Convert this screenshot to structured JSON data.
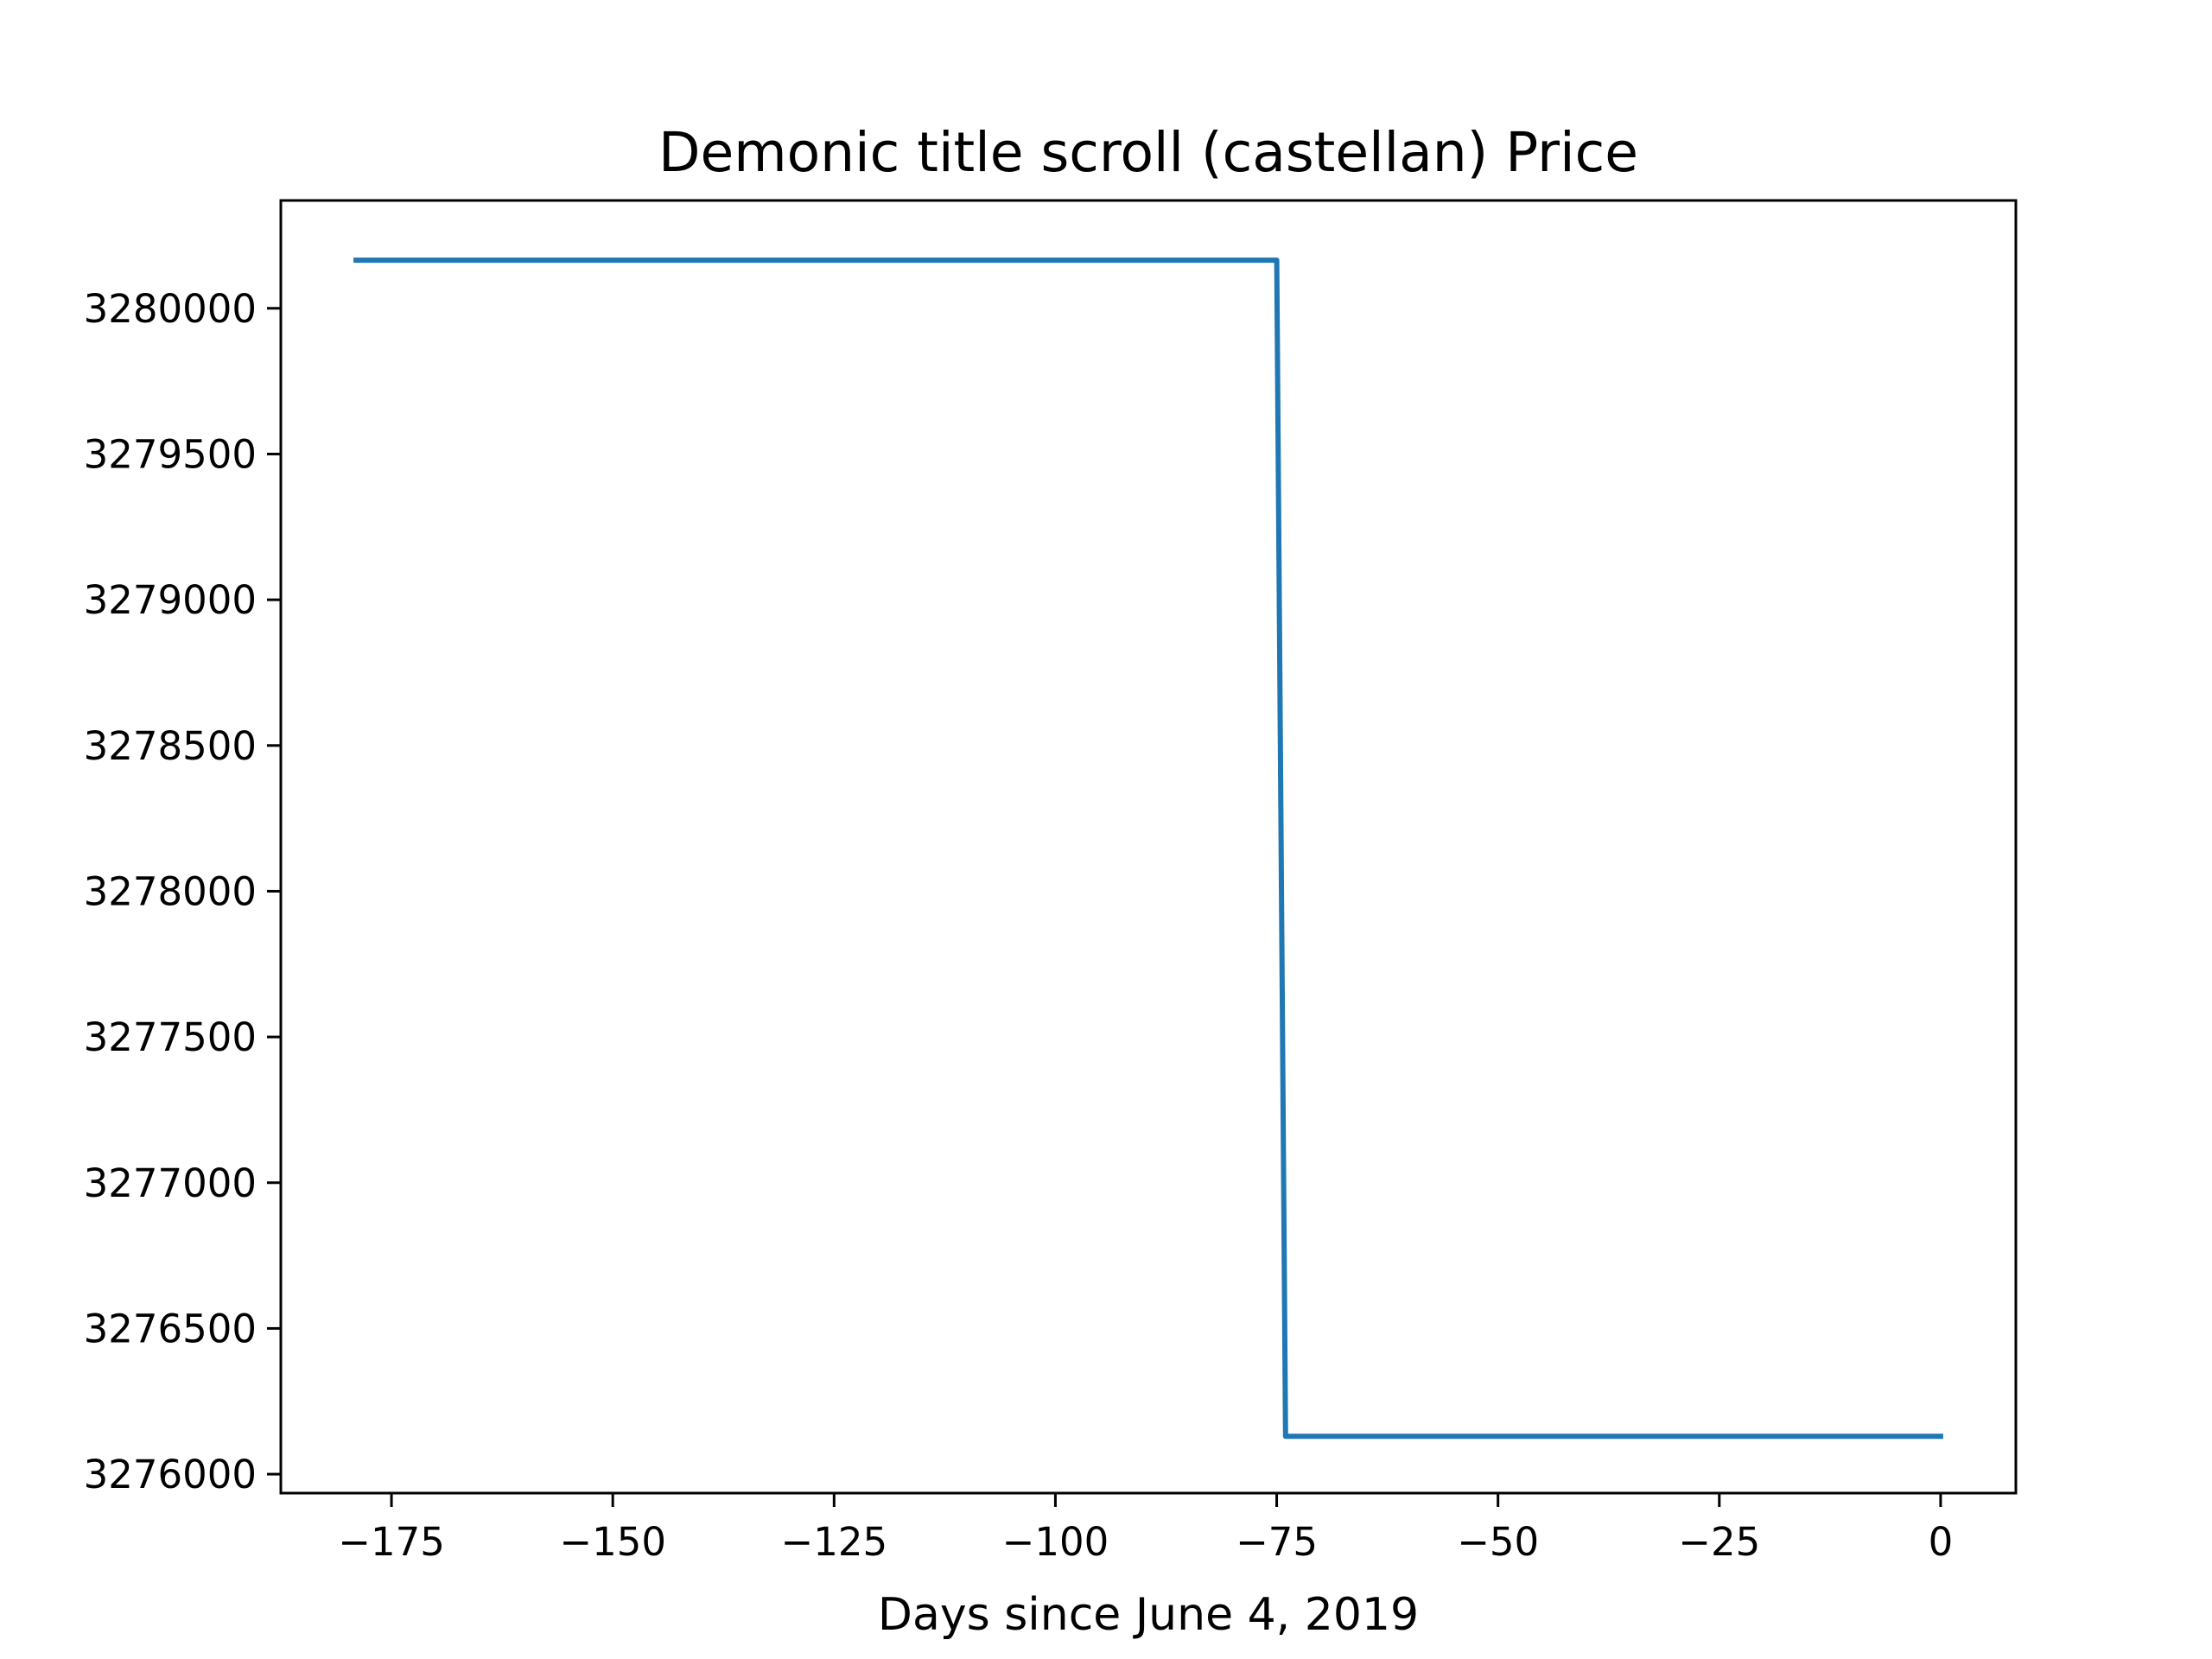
{
  "chart_data": {
    "type": "line",
    "title": "Demonic title scroll (castellan) Price",
    "xlabel": "Days since June 4, 2019",
    "ylabel": "",
    "x_ticks": [
      -175,
      -150,
      -125,
      -100,
      -75,
      -50,
      -25,
      0
    ],
    "x_tick_labels": [
      "−175",
      "−150",
      "−125",
      "−100",
      "−75",
      "−50",
      "−25",
      "0"
    ],
    "y_ticks": [
      3276000,
      3276500,
      3277000,
      3277500,
      3278000,
      3278500,
      3279000,
      3279500,
      3280000
    ],
    "y_tick_labels": [
      "3276000",
      "3276500",
      "3277000",
      "3277500",
      "3278000",
      "3278500",
      "3279000",
      "3279500",
      "3280000"
    ],
    "xlim": [
      -187.5,
      8.5
    ],
    "ylim": [
      3275935,
      3280370
    ],
    "grid": false,
    "series": [
      {
        "color": "#1f77b4",
        "x": [
          -179,
          -75,
          -74,
          0
        ],
        "y": [
          3280165,
          3280165,
          3276130,
          3276130
        ]
      }
    ]
  }
}
